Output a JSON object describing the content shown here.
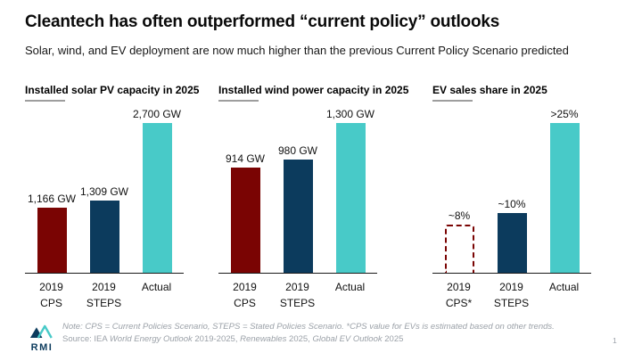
{
  "slide": {
    "title": "Cleantech has often outperformed “current policy” outlooks",
    "subtitle": "Solar, wind, and EV deployment are now much higher than the previous Current Policy Scenario predicted",
    "page_number": "1"
  },
  "footer": {
    "logo_text": "RMI",
    "note": "Note: CPS = Current Policies Scenario, STEPS = Stated Policies Scenario. *CPS value for EVs is estimated based on other trends.",
    "source": {
      "prefix": "Source: IEA ",
      "italic1": "World Energy Outlook",
      "mid1": " 2019-2025, ",
      "italic2": "Renewables",
      "mid2": " 2025, ",
      "italic3": "Global EV Outlook",
      "suffix": " 2025"
    }
  },
  "colors": {
    "cps_red": "#7a0403",
    "steps_navy": "#0c3b5d",
    "actual_teal": "#48cac8",
    "title_underline_gray": "#9e9e9e",
    "footer_gray": "#9ba1a8"
  },
  "chart_data": [
    {
      "type": "bar",
      "title": "Installed solar PV capacity in 2025",
      "categories": [
        "2019 CPS",
        "2019 STEPS",
        "Actual"
      ],
      "categories_display": [
        "2019\nCPS",
        "2019\nSTEPS",
        "Actual"
      ],
      "values": [
        1166,
        1309,
        2700
      ],
      "value_labels": [
        "1,166 GW",
        "1,309 GW",
        "2,700 GW"
      ],
      "unit": "GW",
      "ylim": [
        0,
        2700
      ],
      "bar_styles": [
        "solid-red",
        "solid-navy",
        "solid-teal"
      ],
      "grid": false,
      "legend": false
    },
    {
      "type": "bar",
      "title": "Installed wind power capacity in 2025",
      "categories": [
        "2019 CPS",
        "2019 STEPS",
        "Actual"
      ],
      "categories_display": [
        "2019\nCPS",
        "2019\nSTEPS",
        "Actual"
      ],
      "values": [
        914,
        980,
        1300
      ],
      "value_labels": [
        "914 GW",
        "980 GW",
        "1,300 GW"
      ],
      "unit": "GW",
      "ylim": [
        0,
        1300
      ],
      "bar_styles": [
        "solid-red",
        "solid-navy",
        "solid-teal"
      ],
      "grid": false,
      "legend": false
    },
    {
      "type": "bar",
      "title": "EV sales share in 2025",
      "categories": [
        "2019 CPS*",
        "2019 STEPS",
        "Actual"
      ],
      "categories_display": [
        "2019\nCPS*",
        "2019\nSTEPS",
        "Actual"
      ],
      "values": [
        8,
        10,
        25
      ],
      "value_labels": [
        "~8%",
        "~10%",
        ">25%"
      ],
      "unit": "%",
      "ylim": [
        0,
        25
      ],
      "bar_styles": [
        "dashed-red",
        "solid-navy",
        "solid-teal"
      ],
      "grid": false,
      "legend": false
    }
  ]
}
